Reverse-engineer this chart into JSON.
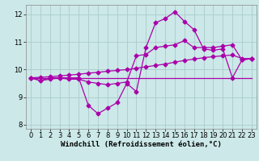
{
  "background_color": "#cce8e8",
  "grid_color": "#aacccc",
  "line_color": "#aa00aa",
  "x_values": [
    0,
    1,
    2,
    3,
    4,
    5,
    6,
    7,
    8,
    9,
    10,
    11,
    12,
    13,
    14,
    15,
    16,
    17,
    18,
    19,
    20,
    21,
    22,
    23
  ],
  "line1": [
    9.7,
    9.6,
    9.7,
    9.7,
    9.7,
    9.7,
    8.7,
    8.4,
    8.6,
    8.8,
    9.5,
    9.2,
    10.8,
    11.7,
    11.85,
    12.1,
    11.75,
    11.45,
    10.75,
    10.7,
    10.75,
    9.7,
    10.35,
    10.4
  ],
  "line2": [
    9.7,
    9.6,
    9.65,
    9.7,
    9.65,
    9.65,
    9.55,
    9.5,
    9.45,
    9.5,
    9.55,
    10.5,
    10.55,
    10.8,
    10.85,
    10.9,
    11.05,
    10.8,
    10.8,
    10.8,
    10.85,
    10.9,
    10.35,
    10.4
  ],
  "line3": [
    9.7,
    9.7,
    9.7,
    9.7,
    9.7,
    9.7,
    9.7,
    9.7,
    9.7,
    9.7,
    9.7,
    9.7,
    9.7,
    9.7,
    9.7,
    9.7,
    9.7,
    9.7,
    9.7,
    9.7,
    9.7,
    9.7,
    9.7,
    9.7
  ],
  "line4": [
    9.7,
    9.72,
    9.74,
    9.77,
    9.8,
    9.83,
    9.87,
    9.9,
    9.94,
    9.97,
    10.0,
    10.05,
    10.1,
    10.15,
    10.2,
    10.27,
    10.33,
    10.38,
    10.43,
    10.47,
    10.5,
    10.53,
    10.4,
    10.4
  ],
  "ylim": [
    7.85,
    12.35
  ],
  "xlim": [
    -0.5,
    23.5
  ],
  "yticks": [
    8,
    9,
    10,
    11,
    12
  ],
  "xticks": [
    0,
    1,
    2,
    3,
    4,
    5,
    6,
    7,
    8,
    9,
    10,
    11,
    12,
    13,
    14,
    15,
    16,
    17,
    18,
    19,
    20,
    21,
    22,
    23
  ],
  "xlabel": "Windchill (Refroidissement éolien,°C)",
  "xlabel_fontsize": 6.5,
  "tick_fontsize": 6.0,
  "marker": "D",
  "markersize": 2.5,
  "linewidth": 0.9
}
